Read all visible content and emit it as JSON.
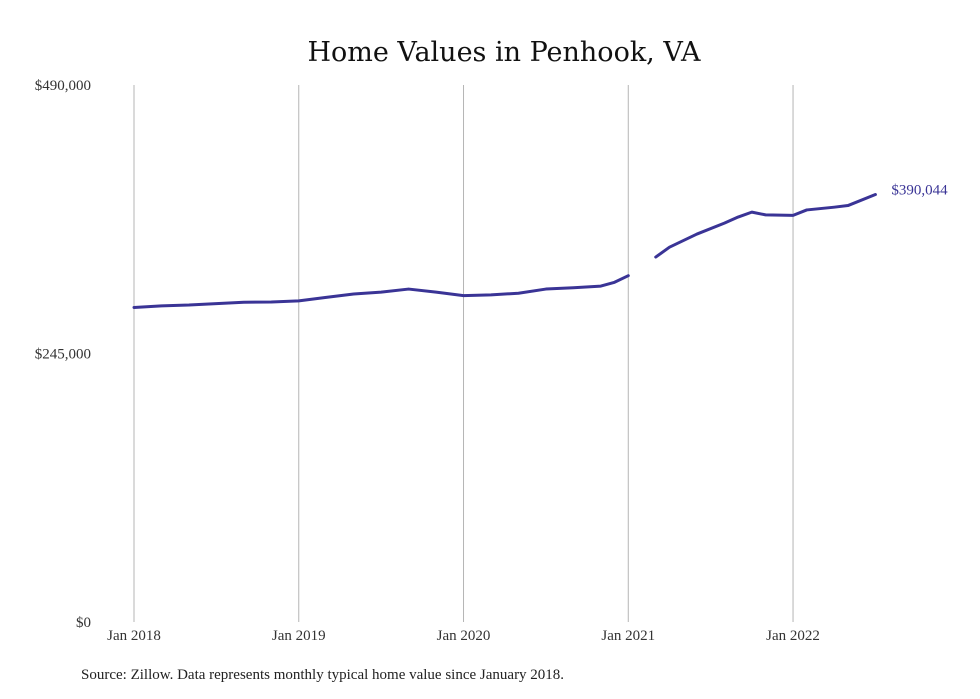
{
  "colors": {
    "line": "#3a3496",
    "grid": "#b5b5b5",
    "end_label": "#3a3496"
  },
  "source_note": "Source: Zillow. Data represents monthly typical home value since January 2018.",
  "chart_data": {
    "type": "line",
    "title": "Home Values in Penhook, VA",
    "xlabel": "",
    "ylabel": "",
    "ylim": [
      0,
      490000
    ],
    "yticks": [
      {
        "value": 0,
        "label": "$0"
      },
      {
        "value": 245000,
        "label": "$245,000"
      },
      {
        "value": 490000,
        "label": "$490,000"
      }
    ],
    "xticks": [
      {
        "value": "2018-01",
        "label": "Jan 2018"
      },
      {
        "value": "2019-01",
        "label": "Jan 2019"
      },
      {
        "value": "2020-01",
        "label": "Jan 2020"
      },
      {
        "value": "2021-01",
        "label": "Jan 2021"
      },
      {
        "value": "2022-01",
        "label": "Jan 2022"
      }
    ],
    "grid": "vertical",
    "end_label": "$390,044",
    "series": [
      {
        "points": [
          {
            "x": "2018-01",
            "y": 287000
          },
          {
            "x": "2018-03",
            "y": 288500
          },
          {
            "x": "2018-05",
            "y": 289200
          },
          {
            "x": "2018-07",
            "y": 290500
          },
          {
            "x": "2018-09",
            "y": 291800
          },
          {
            "x": "2018-11",
            "y": 292000
          },
          {
            "x": "2019-01",
            "y": 293000
          },
          {
            "x": "2019-03",
            "y": 296200
          },
          {
            "x": "2019-05",
            "y": 299300
          },
          {
            "x": "2019-07",
            "y": 301000
          },
          {
            "x": "2019-09",
            "y": 303800
          },
          {
            "x": "2019-11",
            "y": 301000
          },
          {
            "x": "2020-01",
            "y": 297800
          },
          {
            "x": "2020-03",
            "y": 298500
          },
          {
            "x": "2020-05",
            "y": 300000
          },
          {
            "x": "2020-07",
            "y": 303800
          },
          {
            "x": "2020-09",
            "y": 305000
          },
          {
            "x": "2020-11",
            "y": 306500
          },
          {
            "x": "2020-12",
            "y": 310000
          },
          {
            "x": "2021-01",
            "y": 316000
          },
          {
            "x": "2021-03",
            "y": null
          },
          {
            "x": "2021-03",
            "y": 333000
          },
          {
            "x": "2021-04",
            "y": 342000
          },
          {
            "x": "2021-06",
            "y": 354000
          },
          {
            "x": "2021-08",
            "y": 364000
          },
          {
            "x": "2021-09",
            "y": 369500
          },
          {
            "x": "2021-10",
            "y": 374000
          },
          {
            "x": "2021-11",
            "y": 371500
          },
          {
            "x": "2022-01",
            "y": 371000
          },
          {
            "x": "2022-02",
            "y": 376000
          },
          {
            "x": "2022-04",
            "y": 378500
          },
          {
            "x": "2022-05",
            "y": 380000
          },
          {
            "x": "2022-07",
            "y": 390044
          }
        ]
      }
    ]
  }
}
